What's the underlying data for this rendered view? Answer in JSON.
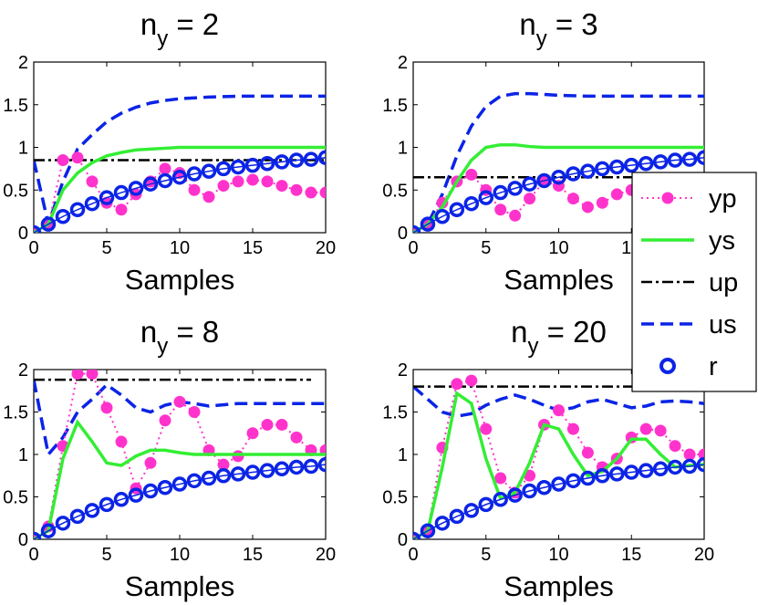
{
  "chart_data": [
    {
      "type": "line",
      "title_main": "n",
      "title_sub": "y",
      "title_rest": " = 2",
      "xlabel": "Samples",
      "ylabel": "",
      "xlim": [
        0,
        20
      ],
      "ylim": [
        0,
        2
      ],
      "xticks": [
        "0",
        "5",
        "10",
        "15",
        "20"
      ],
      "yticks": [
        "0",
        "0.5",
        "1",
        "1.5",
        "2"
      ],
      "series": [
        {
          "name": "yp",
          "x": [
            0,
            1,
            2,
            3,
            4,
            5,
            6,
            7,
            8,
            9,
            10,
            11,
            12,
            13,
            14,
            15,
            16,
            17,
            18,
            19,
            20
          ],
          "values": [
            0,
            0.1,
            0.85,
            0.88,
            0.6,
            0.35,
            0.27,
            0.45,
            0.6,
            0.75,
            0.7,
            0.5,
            0.42,
            0.55,
            0.6,
            0.62,
            0.6,
            0.55,
            0.5,
            0.47,
            0.47
          ]
        },
        {
          "name": "ys",
          "x": [
            0,
            1,
            2,
            3,
            4,
            5,
            6,
            7,
            8,
            9,
            10,
            12,
            14,
            16,
            18,
            20
          ],
          "values": [
            0,
            0.1,
            0.5,
            0.7,
            0.82,
            0.9,
            0.94,
            0.97,
            0.98,
            0.99,
            1.0,
            1.0,
            1.0,
            1.0,
            1.0,
            1.0
          ]
        },
        {
          "name": "up",
          "x": [
            0,
            20
          ],
          "values": [
            0.85,
            0.85
          ]
        },
        {
          "name": "us",
          "x": [
            0,
            1,
            2,
            3,
            4,
            5,
            6,
            7,
            8,
            9,
            10,
            12,
            14,
            16,
            18,
            20
          ],
          "values": [
            0.85,
            0.1,
            0.6,
            0.98,
            1.15,
            1.3,
            1.4,
            1.47,
            1.52,
            1.55,
            1.57,
            1.59,
            1.6,
            1.6,
            1.6,
            1.6
          ]
        },
        {
          "name": "r",
          "x": [
            0,
            1,
            2,
            3,
            4,
            5,
            6,
            7,
            8,
            9,
            10,
            11,
            12,
            13,
            14,
            15,
            16,
            17,
            18,
            19,
            20
          ],
          "values": [
            0,
            0.1,
            0.19,
            0.27,
            0.34,
            0.41,
            0.47,
            0.52,
            0.57,
            0.61,
            0.65,
            0.69,
            0.72,
            0.75,
            0.77,
            0.79,
            0.81,
            0.83,
            0.85,
            0.86,
            0.88
          ]
        }
      ]
    },
    {
      "type": "line",
      "title_main": "n",
      "title_sub": "y",
      "title_rest": " = 3",
      "xlabel": "Samples",
      "ylabel": "",
      "xlim": [
        0,
        20
      ],
      "ylim": [
        0,
        2
      ],
      "xticks": [
        "0",
        "5",
        "10",
        "15",
        "20"
      ],
      "yticks": [
        "0",
        "0.5",
        "1",
        "1.5",
        "2"
      ],
      "series": [
        {
          "name": "yp",
          "x": [
            0,
            1,
            2,
            3,
            4,
            5,
            6,
            7,
            8,
            9,
            10,
            11,
            12,
            13,
            14,
            15,
            16,
            17,
            18,
            19,
            20
          ],
          "values": [
            0,
            0.1,
            0.35,
            0.6,
            0.68,
            0.5,
            0.27,
            0.2,
            0.4,
            0.6,
            0.55,
            0.4,
            0.3,
            0.35,
            0.45,
            0.5,
            0.5,
            0.47,
            0.45,
            0.45,
            0.45
          ]
        },
        {
          "name": "ys",
          "x": [
            0,
            1,
            2,
            3,
            4,
            5,
            6,
            7,
            8,
            9,
            10,
            12,
            14,
            16,
            18,
            20
          ],
          "values": [
            0,
            0.1,
            0.3,
            0.6,
            0.85,
            1.0,
            1.03,
            1.03,
            1.01,
            1.0,
            1.0,
            1.0,
            1.0,
            1.0,
            1.0,
            1.0
          ]
        },
        {
          "name": "up",
          "x": [
            0,
            20
          ],
          "values": [
            0.65,
            0.65
          ]
        },
        {
          "name": "us",
          "x": [
            0,
            1,
            2,
            3,
            4,
            5,
            6,
            7,
            8,
            9,
            10,
            12,
            14,
            16,
            18,
            20
          ],
          "values": [
            0,
            0.1,
            0.45,
            0.9,
            1.25,
            1.48,
            1.6,
            1.63,
            1.63,
            1.62,
            1.61,
            1.6,
            1.6,
            1.6,
            1.6,
            1.6
          ]
        },
        {
          "name": "r",
          "x": [
            0,
            1,
            2,
            3,
            4,
            5,
            6,
            7,
            8,
            9,
            10,
            11,
            12,
            13,
            14,
            15,
            16,
            17,
            18,
            19,
            20
          ],
          "values": [
            0,
            0.1,
            0.19,
            0.27,
            0.34,
            0.41,
            0.47,
            0.52,
            0.57,
            0.61,
            0.65,
            0.69,
            0.72,
            0.75,
            0.77,
            0.79,
            0.81,
            0.83,
            0.85,
            0.86,
            0.88
          ]
        }
      ]
    },
    {
      "type": "line",
      "title_main": "n",
      "title_sub": "y",
      "title_rest": " = 8",
      "xlabel": "Samples",
      "ylabel": "",
      "xlim": [
        0,
        20
      ],
      "ylim": [
        0,
        2
      ],
      "xticks": [
        "0",
        "5",
        "10",
        "15",
        "20"
      ],
      "yticks": [
        "0",
        "0.5",
        "1",
        "1.5",
        "2"
      ],
      "series": [
        {
          "name": "yp",
          "x": [
            0,
            1,
            2,
            3,
            4,
            5,
            6,
            7,
            8,
            9,
            10,
            11,
            12,
            13,
            14,
            15,
            16,
            17,
            18,
            19,
            20
          ],
          "values": [
            0,
            0.15,
            1.1,
            1.95,
            1.95,
            1.55,
            1.15,
            0.6,
            0.9,
            1.4,
            1.62,
            1.5,
            1.05,
            0.88,
            0.98,
            1.25,
            1.35,
            1.35,
            1.2,
            1.05,
            1.05
          ]
        },
        {
          "name": "ys",
          "x": [
            0,
            1,
            2,
            3,
            4,
            5,
            6,
            7,
            8,
            9,
            10,
            11,
            12,
            14,
            16,
            18,
            20
          ],
          "values": [
            0,
            0.1,
            0.95,
            1.38,
            1.15,
            0.9,
            0.87,
            0.98,
            1.05,
            1.05,
            1.02,
            1.0,
            1.0,
            1.0,
            1.0,
            1.0,
            1.0
          ]
        },
        {
          "name": "up",
          "x": [
            0,
            19
          ],
          "values": [
            1.88,
            1.88
          ]
        },
        {
          "name": "us",
          "x": [
            0,
            1,
            2,
            3,
            4,
            5,
            6,
            7,
            8,
            9,
            10,
            11,
            12,
            14,
            16,
            18,
            20
          ],
          "values": [
            1.88,
            1.0,
            1.2,
            1.5,
            1.65,
            1.82,
            1.7,
            1.55,
            1.5,
            1.58,
            1.62,
            1.6,
            1.57,
            1.6,
            1.6,
            1.6,
            1.6
          ]
        },
        {
          "name": "r",
          "x": [
            0,
            1,
            2,
            3,
            4,
            5,
            6,
            7,
            8,
            9,
            10,
            11,
            12,
            13,
            14,
            15,
            16,
            17,
            18,
            19,
            20
          ],
          "values": [
            0,
            0.1,
            0.19,
            0.27,
            0.34,
            0.41,
            0.47,
            0.52,
            0.57,
            0.61,
            0.65,
            0.69,
            0.72,
            0.75,
            0.77,
            0.79,
            0.81,
            0.83,
            0.85,
            0.86,
            0.88
          ]
        }
      ]
    },
    {
      "type": "line",
      "title_main": "n",
      "title_sub": "y",
      "title_rest": " = 20",
      "xlabel": "Samples",
      "ylabel": "",
      "xlim": [
        0,
        20
      ],
      "ylim": [
        0,
        2
      ],
      "xticks": [
        "0",
        "5",
        "10",
        "15",
        "20"
      ],
      "yticks": [
        "0",
        "0.5",
        "1",
        "1.5",
        "2"
      ],
      "series": [
        {
          "name": "yp",
          "x": [
            0,
            1,
            2,
            3,
            4,
            5,
            6,
            7,
            8,
            9,
            10,
            11,
            12,
            13,
            14,
            15,
            16,
            17,
            18,
            19,
            20
          ],
          "values": [
            0,
            0.1,
            1.08,
            1.83,
            1.87,
            1.3,
            0.72,
            0.55,
            0.75,
            1.35,
            1.52,
            1.3,
            1.02,
            0.85,
            0.95,
            1.2,
            1.3,
            1.28,
            1.1,
            1.0,
            1.0
          ]
        },
        {
          "name": "ys",
          "x": [
            0,
            1,
            2,
            3,
            4,
            5,
            6,
            7,
            8,
            9,
            10,
            11,
            12,
            13,
            14,
            15,
            16,
            17,
            18,
            19,
            20
          ],
          "values": [
            0,
            0.1,
            0.85,
            1.72,
            1.6,
            0.95,
            0.48,
            0.55,
            0.9,
            1.35,
            1.3,
            1.0,
            0.75,
            0.8,
            0.95,
            1.18,
            1.18,
            1.0,
            0.85,
            0.87,
            0.88
          ]
        },
        {
          "name": "up",
          "x": [
            0,
            20
          ],
          "values": [
            1.8,
            1.8
          ]
        },
        {
          "name": "us",
          "x": [
            0,
            1,
            2,
            3,
            4,
            5,
            6,
            7,
            8,
            9,
            10,
            11,
            12,
            13,
            14,
            15,
            16,
            17,
            18,
            19,
            20
          ],
          "values": [
            1.8,
            1.65,
            1.5,
            1.45,
            1.48,
            1.58,
            1.65,
            1.7,
            1.65,
            1.58,
            1.52,
            1.55,
            1.62,
            1.65,
            1.6,
            1.55,
            1.57,
            1.62,
            1.63,
            1.62,
            1.6
          ]
        },
        {
          "name": "r",
          "x": [
            0,
            1,
            2,
            3,
            4,
            5,
            6,
            7,
            8,
            9,
            10,
            11,
            12,
            13,
            14,
            15,
            16,
            17,
            18,
            19,
            20
          ],
          "values": [
            0,
            0.1,
            0.19,
            0.27,
            0.34,
            0.41,
            0.47,
            0.52,
            0.57,
            0.61,
            0.65,
            0.69,
            0.72,
            0.75,
            0.77,
            0.79,
            0.81,
            0.83,
            0.85,
            0.86,
            0.88
          ]
        }
      ]
    }
  ],
  "legend": {
    "items": [
      {
        "label": "yp",
        "color": "#ff33cc",
        "style": "dotted-filled-circle"
      },
      {
        "label": "ys",
        "color": "#33ee33",
        "style": "solid"
      },
      {
        "label": "up",
        "color": "#000000",
        "style": "dashdot"
      },
      {
        "label": "us",
        "color": "#0b24e6",
        "style": "dashed"
      },
      {
        "label": "r",
        "color": "#0b24e6",
        "style": "open-circle"
      }
    ],
    "placement": "right-middle"
  },
  "colors": {
    "yp": "#ff33cc",
    "ys": "#33ee33",
    "up": "#000000",
    "us": "#0b24e6",
    "r": "#0b24e6"
  }
}
